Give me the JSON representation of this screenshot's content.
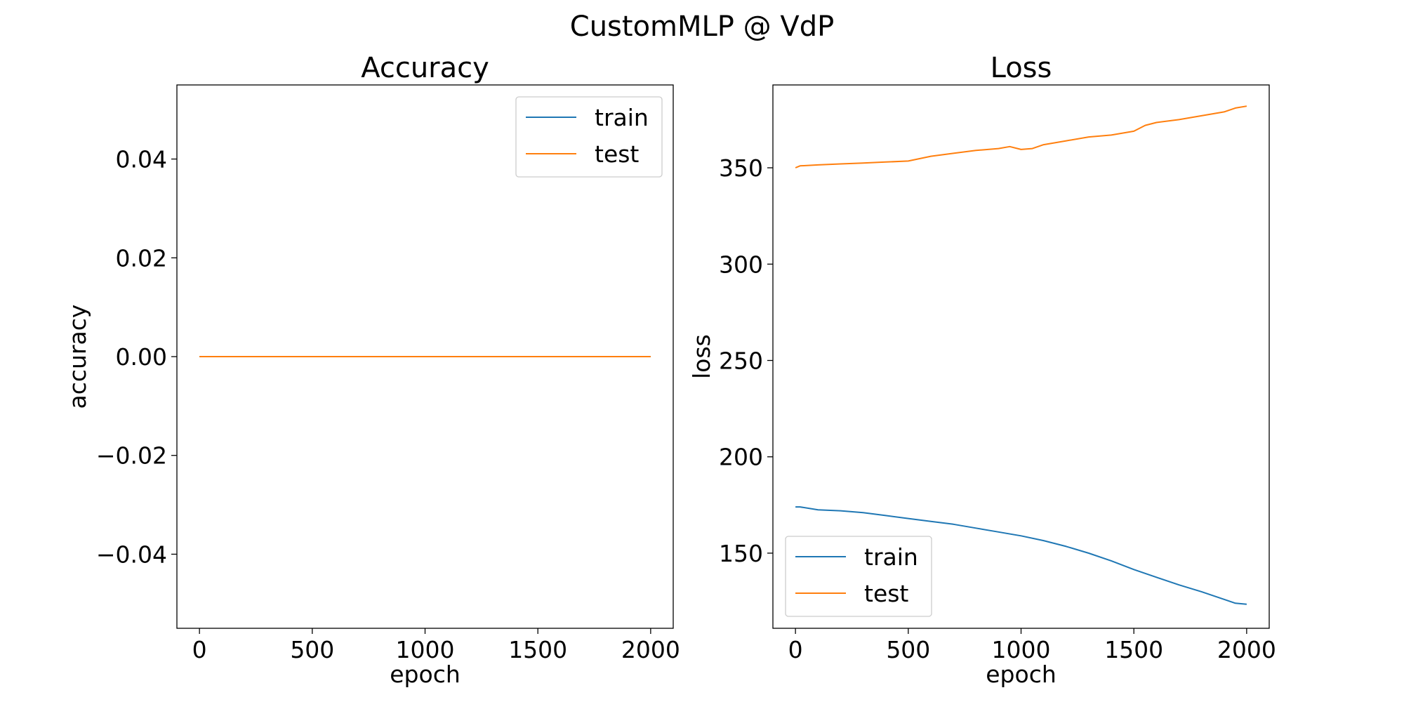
{
  "figure": {
    "suptitle": "CustomMLP @ VdP"
  },
  "colors": {
    "train": "#1f77b4",
    "test": "#ff7f0e",
    "axes": "#000000",
    "background": "#ffffff"
  },
  "chart_data": [
    {
      "type": "line",
      "title": "Accuracy",
      "xlabel": "epoch",
      "ylabel": "accuracy",
      "xlim": [
        -100,
        2100
      ],
      "ylim": [
        -0.055,
        0.055
      ],
      "xticks": [
        0,
        500,
        1000,
        1500,
        2000
      ],
      "xtick_labels": [
        "0",
        "500",
        "1000",
        "1500",
        "2000"
      ],
      "yticks": [
        -0.04,
        -0.02,
        0.0,
        0.02,
        0.04
      ],
      "ytick_labels": [
        "−0.04",
        "−0.02",
        "0.00",
        "0.02",
        "0.04"
      ],
      "grid": false,
      "legend": "upper right",
      "series": [
        {
          "name": "train",
          "color": "#1f77b4",
          "x": [
            0,
            2000
          ],
          "y": [
            0,
            0
          ]
        },
        {
          "name": "test",
          "color": "#ff7f0e",
          "x": [
            0,
            2000
          ],
          "y": [
            0,
            0
          ]
        }
      ]
    },
    {
      "type": "line",
      "title": "Loss",
      "xlabel": "epoch",
      "ylabel": "loss",
      "xlim": [
        -100,
        2100
      ],
      "ylim": [
        111,
        393
      ],
      "xticks": [
        0,
        500,
        1000,
        1500,
        2000
      ],
      "xtick_labels": [
        "0",
        "500",
        "1000",
        "1500",
        "2000"
      ],
      "yticks": [
        150,
        200,
        250,
        300,
        350
      ],
      "ytick_labels": [
        "150",
        "200",
        "250",
        "300",
        "350"
      ],
      "grid": false,
      "legend": "lower left",
      "series": [
        {
          "name": "train",
          "color": "#1f77b4",
          "x": [
            0,
            20,
            100,
            200,
            300,
            400,
            500,
            600,
            700,
            800,
            900,
            1000,
            1100,
            1200,
            1300,
            1400,
            1500,
            1600,
            1700,
            1800,
            1900,
            1950,
            2000
          ],
          "y": [
            174,
            174,
            172.5,
            172,
            171,
            169.5,
            168,
            166.5,
            165,
            163,
            161,
            159,
            156.5,
            153.5,
            150,
            146,
            141.5,
            137.5,
            133.5,
            130,
            126,
            124,
            123.5
          ]
        },
        {
          "name": "test",
          "color": "#ff7f0e",
          "x": [
            0,
            20,
            100,
            200,
            300,
            400,
            500,
            600,
            700,
            800,
            900,
            950,
            1000,
            1050,
            1100,
            1200,
            1300,
            1400,
            1500,
            1550,
            1600,
            1700,
            1800,
            1900,
            1950,
            2000
          ],
          "y": [
            350,
            351,
            351.5,
            352,
            352.5,
            353,
            353.5,
            356,
            357.5,
            359,
            360,
            361,
            359.5,
            360,
            362,
            364,
            366,
            367,
            369,
            372,
            373.5,
            375,
            377,
            379,
            381,
            382
          ]
        }
      ]
    }
  ]
}
